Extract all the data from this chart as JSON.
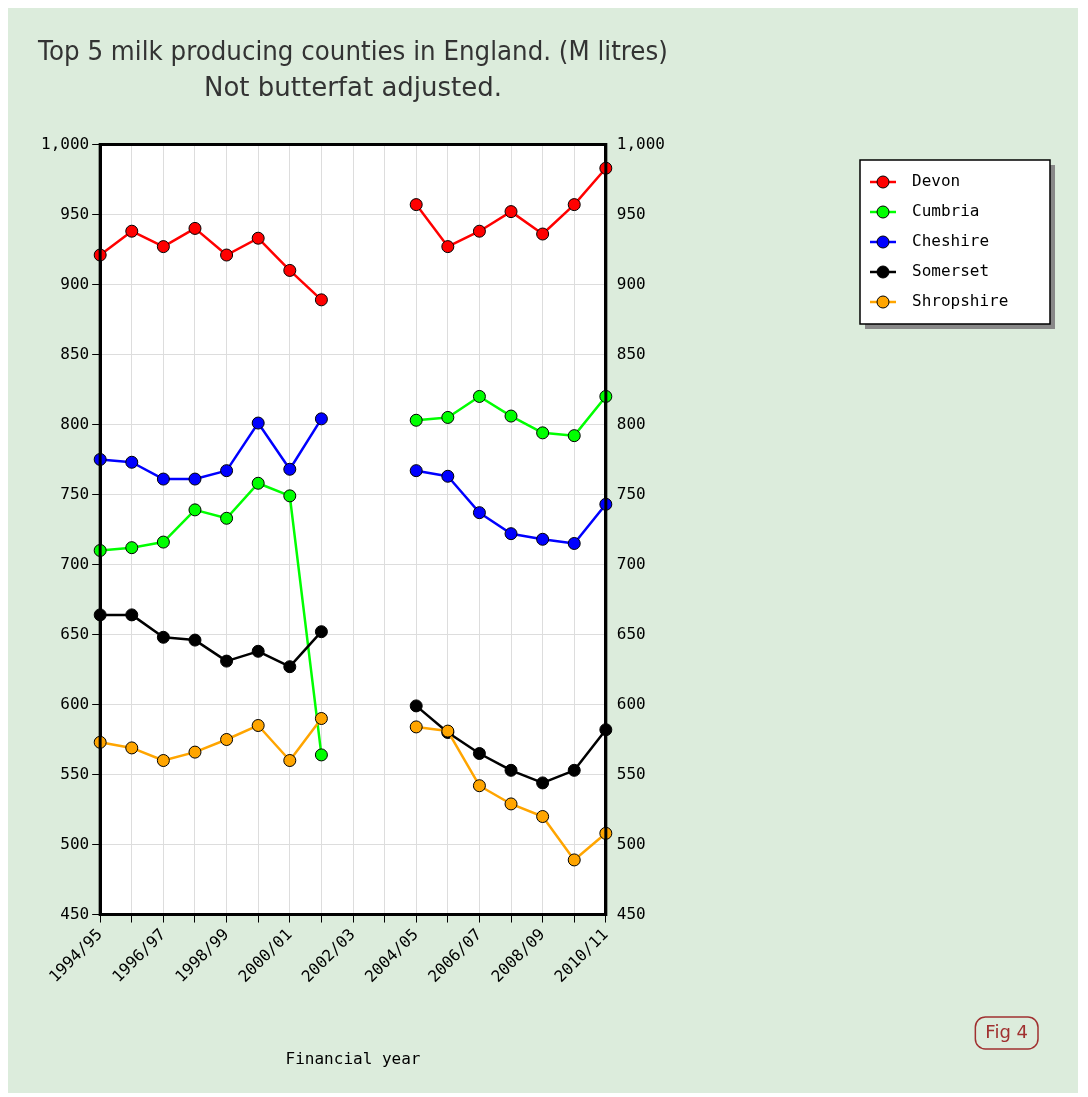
{
  "chart_data": {
    "type": "line",
    "title": "Top 5 milk producing counties in England. (M litres)",
    "subtitle": "Not butterfat adjusted.",
    "xlabel": "Financial year",
    "categories": [
      "1994/95",
      null,
      "1996/97",
      null,
      "1998/99",
      null,
      "2000/01",
      null,
      "2002/03",
      null,
      "2004/05",
      null,
      "2006/07",
      null,
      "2008/09",
      null,
      "2010/11"
    ],
    "series": [
      {
        "name": "Devon",
        "color": "#ff0000",
        "values": [
          921,
          938,
          927,
          940,
          921,
          933,
          910,
          889,
          null,
          null,
          957,
          927,
          938,
          952,
          936,
          957,
          983
        ]
      },
      {
        "name": "Cumbria",
        "color": "#00ff00",
        "values": [
          710,
          712,
          716,
          739,
          733,
          758,
          749,
          564,
          null,
          null,
          803,
          805,
          820,
          806,
          794,
          792,
          820
        ]
      },
      {
        "name": "Cheshire",
        "color": "#0000ff",
        "values": [
          775,
          773,
          761,
          761,
          767,
          801,
          768,
          804,
          null,
          null,
          767,
          763,
          737,
          722,
          718,
          715,
          743
        ]
      },
      {
        "name": "Somerset",
        "color": "#000000",
        "values": [
          664,
          664,
          648,
          646,
          631,
          638,
          627,
          652,
          null,
          null,
          599,
          580,
          565,
          553,
          544,
          553,
          582
        ]
      },
      {
        "name": "Shropshire",
        "color": "#ffa500",
        "values": [
          573,
          569,
          560,
          566,
          575,
          585,
          560,
          590,
          null,
          null,
          584,
          581,
          542,
          529,
          520,
          489,
          508
        ]
      }
    ],
    "ylim": [
      450,
      1000
    ],
    "yticks": [
      450,
      500,
      550,
      600,
      650,
      700,
      750,
      800,
      850,
      900,
      950,
      {
        "value": 1000,
        "label": "1,000"
      }
    ],
    "y2lim": [
      450,
      1000
    ],
    "y2ticks": [
      450,
      500,
      550,
      600,
      650,
      700,
      750,
      800,
      850,
      900,
      950,
      {
        "value": 1000,
        "label": "1,000"
      }
    ],
    "grid": true,
    "legend": "top right",
    "marker": "circle",
    "line_style": "solid",
    "annotations": [
      "Fig 4"
    ]
  }
}
